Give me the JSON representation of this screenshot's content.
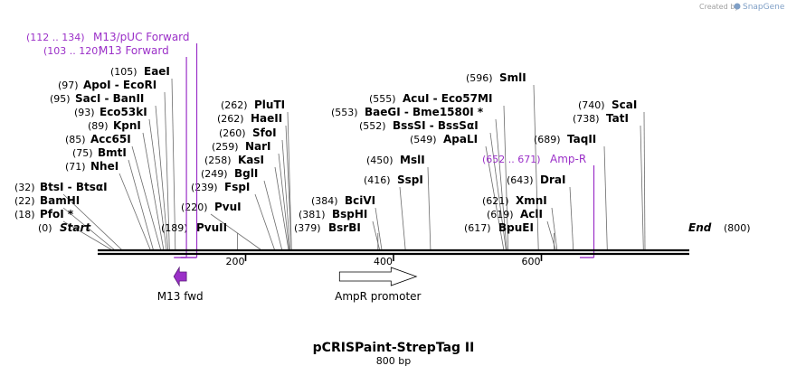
{
  "brand": {
    "prefix": "Created by",
    "name": "SnapGene"
  },
  "plasmid": {
    "name": "pCRISPaint-StrepTag II",
    "size_label": "800 bp",
    "length": 800
  },
  "ends": {
    "start_label": "Start",
    "start_pos": "(0)",
    "end_label": "End",
    "end_pos": "(800)"
  },
  "ticks": [
    {
      "value": 200,
      "label": "200"
    },
    {
      "value": 400,
      "label": "400"
    },
    {
      "value": 600,
      "label": "600"
    }
  ],
  "sites": [
    {
      "pos": "(18)",
      "name": "PfoI *",
      "loc": 18
    },
    {
      "pos": "(22)",
      "name": "BamHI",
      "loc": 22
    },
    {
      "pos": "(32)",
      "name": "BtsI - BtsαI",
      "loc": 32
    },
    {
      "pos": "(71)",
      "name": "NheI",
      "loc": 71
    },
    {
      "pos": "(75)",
      "name": "BmtI",
      "loc": 75
    },
    {
      "pos": "(85)",
      "name": "Acc65I",
      "loc": 85
    },
    {
      "pos": "(89)",
      "name": "KpnI",
      "loc": 89
    },
    {
      "pos": "(93)",
      "name": "Eco53kI",
      "loc": 93
    },
    {
      "pos": "(95)",
      "name": "SacI - BanII",
      "loc": 95
    },
    {
      "pos": "(97)",
      "name": "ApoI - EcoRI",
      "loc": 97
    },
    {
      "pos": "(105)",
      "name": "EaeI",
      "loc": 105
    },
    {
      "pos": "(189)",
      "name": "PvuII",
      "loc": 189
    },
    {
      "pos": "(220)",
      "name": "PvuI",
      "loc": 220
    },
    {
      "pos": "(239)",
      "name": "FspI",
      "loc": 239
    },
    {
      "pos": "(249)",
      "name": "BglI",
      "loc": 249
    },
    {
      "pos": "(258)",
      "name": "KasI",
      "loc": 258
    },
    {
      "pos": "(259)",
      "name": "NarI",
      "loc": 259
    },
    {
      "pos": "(260)",
      "name": "SfoI",
      "loc": 260
    },
    {
      "pos": "(262)",
      "name": "HaeII",
      "loc": 262
    },
    {
      "pos": "(262)",
      "name": "PluTI",
      "loc": 262
    },
    {
      "pos": "(379)",
      "name": "BsrBI",
      "loc": 379
    },
    {
      "pos": "(381)",
      "name": "BspHI",
      "loc": 381
    },
    {
      "pos": "(384)",
      "name": "BciVI",
      "loc": 384
    },
    {
      "pos": "(416)",
      "name": "SspI",
      "loc": 416
    },
    {
      "pos": "(450)",
      "name": "MslI",
      "loc": 450
    },
    {
      "pos": "(549)",
      "name": "ApaLI",
      "loc": 549
    },
    {
      "pos": "(552)",
      "name": "BssSI - BssSαI",
      "loc": 552
    },
    {
      "pos": "(553)",
      "name": "BaeGI - Bme1580I *",
      "loc": 553
    },
    {
      "pos": "(555)",
      "name": "AcuI - Eco57MI",
      "loc": 555
    },
    {
      "pos": "(596)",
      "name": "SmlI",
      "loc": 596
    },
    {
      "pos": "(617)",
      "name": "BpuEI",
      "loc": 617
    },
    {
      "pos": "(619)",
      "name": "AclI",
      "loc": 619
    },
    {
      "pos": "(621)",
      "name": "XmnI",
      "loc": 621
    },
    {
      "pos": "(643)",
      "name": "DraI",
      "loc": 643
    },
    {
      "pos": "(689)",
      "name": "TaqII",
      "loc": 689
    },
    {
      "pos": "(738)",
      "name": "TatI",
      "loc": 738
    },
    {
      "pos": "(740)",
      "name": "ScaI",
      "loc": 740
    }
  ],
  "primers": [
    {
      "pos": "(112 .. 134)",
      "name": "M13/pUC Forward",
      "start": 112,
      "end": 134
    },
    {
      "pos": "(103 .. 120)",
      "name": "M13 Forward",
      "start": 103,
      "end": 120
    },
    {
      "pos": "(652 .. 671)",
      "name": "Amp-R",
      "start": 652,
      "end": 671
    }
  ],
  "features": [
    {
      "name": "M13 fwd",
      "start": 103,
      "end": 120,
      "color": "#9b30c8",
      "type": "reverse-arrow"
    },
    {
      "name": "AmpR promoter",
      "start": 327,
      "end": 431,
      "color": "#ffffff",
      "type": "forward-arrow"
    }
  ],
  "colors": {
    "primer": "#9b30c8",
    "leader": "#6b6b6b",
    "backbone": "#000000"
  }
}
